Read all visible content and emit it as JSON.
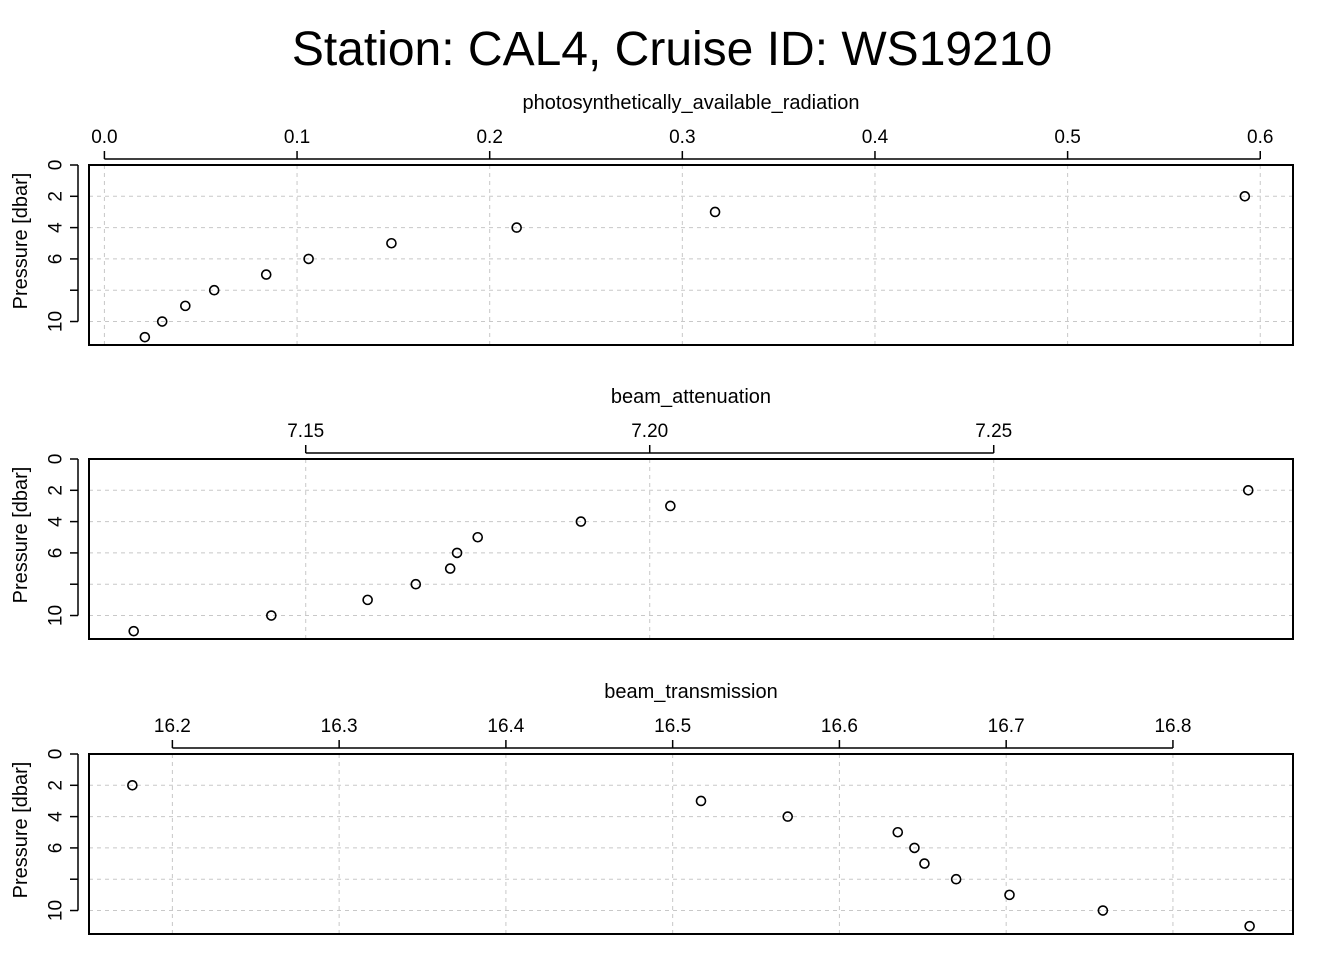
{
  "title": "Station: CAL4, Cruise ID: WS19210",
  "chart_data": [
    {
      "type": "scatter",
      "xlabel": "photosynthetically_available_radiation",
      "ylabel": "Pressure [dbar]",
      "xlim": [
        -0.008,
        0.617
      ],
      "ylim": [
        11.5,
        0
      ],
      "xticks": [
        0.0,
        0.1,
        0.2,
        0.3,
        0.4,
        0.5,
        0.6
      ],
      "xtick_labels": [
        "0.0",
        "0.1",
        "0.2",
        "0.3",
        "0.4",
        "0.5",
        "0.6"
      ],
      "yticks": [
        0,
        2,
        4,
        6,
        8,
        10
      ],
      "ytick_labels": [
        "0",
        "2",
        "4",
        "6",
        "",
        "10"
      ],
      "grid": true,
      "x": [
        0.592,
        0.317,
        0.214,
        0.149,
        0.106,
        0.084,
        0.057,
        0.042,
        0.03,
        0.021
      ],
      "y": [
        2,
        3,
        4,
        5,
        6,
        7,
        8,
        9,
        10,
        11
      ]
    },
    {
      "type": "scatter",
      "xlabel": "beam_attenuation",
      "ylabel": "Pressure [dbar]",
      "xlim": [
        7.1185,
        7.2935
      ],
      "ylim": [
        11.5,
        0
      ],
      "xticks": [
        7.15,
        7.2,
        7.25
      ],
      "xtick_labels": [
        "7.15",
        "7.20",
        "7.25"
      ],
      "yticks": [
        0,
        2,
        4,
        6,
        8,
        10
      ],
      "ytick_labels": [
        "0",
        "2",
        "4",
        "6",
        "",
        "10"
      ],
      "grid": true,
      "x": [
        7.287,
        7.203,
        7.19,
        7.175,
        7.172,
        7.171,
        7.166,
        7.159,
        7.145,
        7.125
      ],
      "y": [
        2,
        3,
        4,
        5,
        6,
        7,
        8,
        9,
        10,
        11
      ]
    },
    {
      "type": "scatter",
      "xlabel": "beam_transmission",
      "ylabel": "Pressure [dbar]",
      "xlim": [
        16.15,
        16.872
      ],
      "ylim": [
        11.5,
        0
      ],
      "xticks": [
        16.2,
        16.3,
        16.4,
        16.5,
        16.6,
        16.7,
        16.8
      ],
      "xtick_labels": [
        "16.2",
        "16.3",
        "16.4",
        "16.5",
        "16.6",
        "16.7",
        "16.8"
      ],
      "yticks": [
        0,
        2,
        4,
        6,
        8,
        10
      ],
      "ytick_labels": [
        "0",
        "2",
        "4",
        "6",
        "",
        "10"
      ],
      "grid": true,
      "x": [
        16.176,
        16.517,
        16.569,
        16.635,
        16.645,
        16.651,
        16.67,
        16.702,
        16.758,
        16.846
      ],
      "y": [
        2,
        3,
        4,
        5,
        6,
        7,
        8,
        9,
        10,
        11
      ]
    }
  ]
}
